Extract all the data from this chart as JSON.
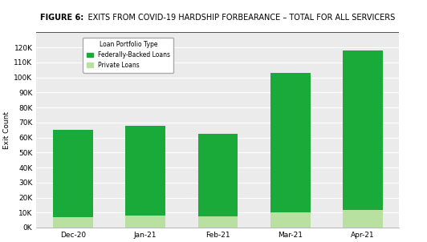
{
  "categories": [
    "Dec-20",
    "Jan-21",
    "Feb-21",
    "Mar-21",
    "Apr-21"
  ],
  "federally_backed": [
    58000,
    60000,
    55000,
    93000,
    106000
  ],
  "private_loans": [
    7000,
    8000,
    7500,
    10000,
    12000
  ],
  "color_federally": "#1aaa3a",
  "color_private": "#b8e0a0",
  "ylabel": "Exit Count",
  "ylim": [
    0,
    130000
  ],
  "yticks": [
    0,
    10000,
    20000,
    30000,
    40000,
    50000,
    60000,
    70000,
    80000,
    90000,
    100000,
    110000,
    120000
  ],
  "legend_title": "Loan Portfolio Type",
  "legend_label1": "Federally-Backed Loans",
  "legend_label2": "Private Loans",
  "title_bold": "FIGURE 6:",
  "title_rest": "    EXITS FROM COVID-19 HARDSHIP FORBEARANCE – TOTAL FOR ALL SERVICERS",
  "bg_color": "#ebebeb",
  "plot_bg": "#ebebeb",
  "border_color": "#999999",
  "header_border_color": "#333333",
  "bar_width": 0.55
}
